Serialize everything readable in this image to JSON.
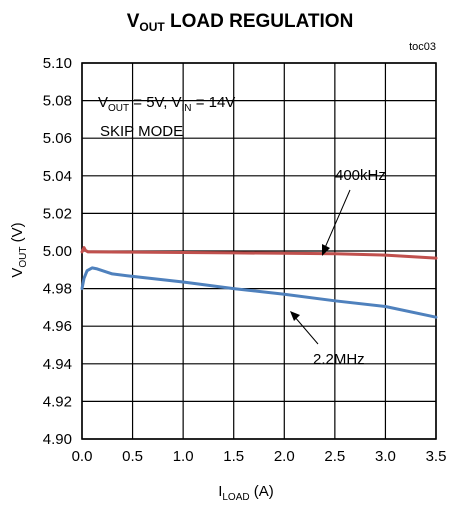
{
  "chart_data": {
    "type": "line",
    "title": {
      "prefix": "V",
      "sub": "OUT",
      "rest": " LOAD REGULATION"
    },
    "tag": "toc03",
    "xlabel": {
      "main": "I",
      "sub": "LOAD",
      "unit": " (A)"
    },
    "ylabel": {
      "main": "V",
      "sub": "OUT",
      "unit": " (V)"
    },
    "xlim": [
      0.0,
      3.5
    ],
    "ylim": [
      4.9,
      5.1
    ],
    "xticks": [
      "0.0",
      "0.5",
      "1.0",
      "1.5",
      "2.0",
      "2.5",
      "3.0",
      "3.5"
    ],
    "yticks": [
      "5.10",
      "5.08",
      "5.06",
      "5.04",
      "5.02",
      "5.00",
      "4.98",
      "4.96",
      "4.94",
      "4.92",
      "4.90"
    ],
    "grid": true,
    "annotation": {
      "l1_v": "V",
      "l1_out": "OUT",
      "l1_mid": " = 5V, V",
      "l1_in": "IN",
      "l1_end": " = 14V",
      "line2": "SKIP MODE"
    },
    "series": [
      {
        "name": "400kHz",
        "color": "#c0504d",
        "x": [
          0.0,
          0.02,
          0.035,
          0.06,
          0.1,
          0.5,
          1.0,
          1.5,
          2.0,
          2.5,
          3.0,
          3.5
        ],
        "y": [
          4.9995,
          5.0018,
          5.0003,
          4.9995,
          4.9995,
          4.9994,
          4.9992,
          4.999,
          4.9988,
          4.9985,
          4.9978,
          4.9962
        ]
      },
      {
        "name": "2.2MHz",
        "color": "#4f81bd",
        "x": [
          0.0,
          0.02,
          0.05,
          0.1,
          0.15,
          0.3,
          0.5,
          1.0,
          1.5,
          2.0,
          2.5,
          3.0,
          3.5
        ],
        "y": [
          4.98,
          4.9855,
          4.9895,
          4.991,
          4.9905,
          4.9878,
          4.9865,
          4.9835,
          4.98,
          4.977,
          4.9735,
          4.9705,
          4.9648
        ]
      }
    ],
    "series_labels": {
      "s400": "400kHz",
      "s22": "2.2MHz"
    }
  }
}
